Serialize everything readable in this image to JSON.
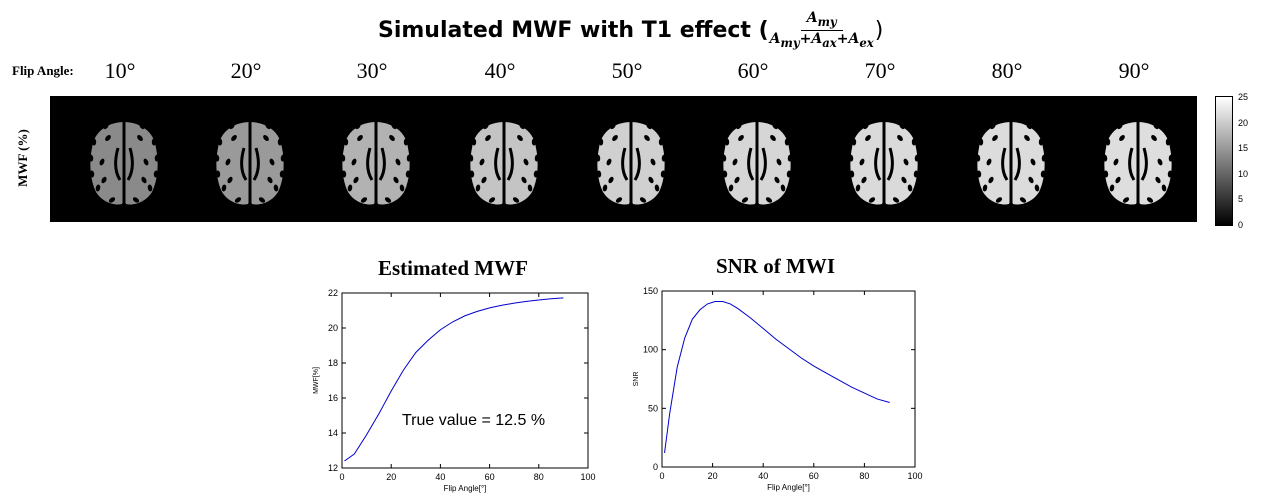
{
  "figure_title": {
    "prefix": "Simulated MWF with T1 effect (",
    "numerator": "A",
    "numerator_sub": "my",
    "denominator": "A",
    "denominator_sub1": "my",
    "plus1": "+A",
    "denominator_sub2": "ax",
    "plus2": "+A",
    "denominator_sub3": "ex",
    "suffix": ")"
  },
  "flip_angle_label": "Flip Angle:",
  "flip_angles": [
    "10°",
    "20°",
    "30°",
    "40°",
    "50°",
    "60°",
    "70°",
    "80°",
    "90°"
  ],
  "brain_gray_levels": [
    "#8a8a8a",
    "#9a9a9a",
    "#b2b2b2",
    "#c4c4c4",
    "#d0d0d0",
    "#d6d6d6",
    "#dadada",
    "#dcdcdc",
    "#dedede"
  ],
  "mwf_axis_label": "MWF (%)",
  "colorbar": {
    "ticks": [
      "25",
      "20",
      "15",
      "10",
      "5",
      "0"
    ],
    "min": 0,
    "max": 25
  },
  "chart_data": [
    {
      "type": "line",
      "title": "Estimated MWF",
      "xlabel": "Flip Angle[°]",
      "ylabel": "MWF[%]",
      "xlim": [
        0,
        100
      ],
      "ylim": [
        12,
        22
      ],
      "xticks": [
        "0",
        "20",
        "40",
        "60",
        "80",
        "100"
      ],
      "yticks": [
        "12",
        "14",
        "16",
        "18",
        "20",
        "22"
      ],
      "annotation": "True value = 12.5 %",
      "series": [
        {
          "name": "Estimated MWF",
          "color": "#0000cc",
          "x": [
            1,
            5,
            10,
            15,
            20,
            25,
            30,
            35,
            40,
            45,
            50,
            55,
            60,
            65,
            70,
            75,
            80,
            85,
            90
          ],
          "y": [
            12.4,
            12.8,
            13.9,
            15.1,
            16.4,
            17.6,
            18.6,
            19.3,
            19.9,
            20.35,
            20.7,
            20.95,
            21.15,
            21.3,
            21.42,
            21.52,
            21.6,
            21.67,
            21.72
          ]
        }
      ]
    },
    {
      "type": "line",
      "title": "SNR of MWI",
      "xlabel": "Flip Angle[°]",
      "ylabel": "SNR",
      "xlim": [
        0,
        100
      ],
      "ylim": [
        0,
        150
      ],
      "xticks": [
        "0",
        "20",
        "40",
        "60",
        "80",
        "100"
      ],
      "yticks": [
        "0",
        "50",
        "100",
        "150"
      ],
      "series": [
        {
          "name": "SNR",
          "color": "#0000cc",
          "x": [
            1,
            3,
            6,
            9,
            12,
            15,
            18,
            21,
            24,
            27,
            30,
            35,
            40,
            45,
            50,
            55,
            60,
            65,
            70,
            75,
            80,
            85,
            90
          ],
          "y": [
            12,
            45,
            85,
            110,
            126,
            134,
            139,
            141,
            141,
            139,
            135,
            127,
            118,
            109,
            101,
            93,
            86,
            80,
            74,
            68,
            63,
            58,
            55
          ]
        }
      ]
    }
  ]
}
